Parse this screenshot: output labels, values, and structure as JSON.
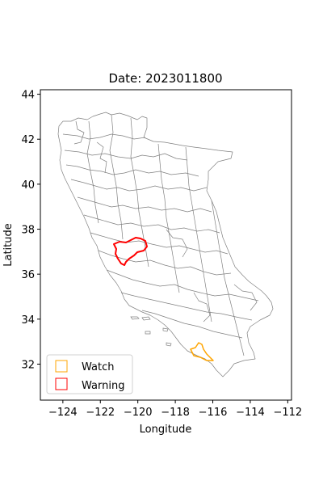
{
  "title": "Date: 2023011800",
  "map": {
    "xlabel": "Longitude",
    "ylabel": "Latitude",
    "xlim": [
      -125.2,
      -111.8
    ],
    "ylim": [
      30.4,
      44.2
    ],
    "xticks": [
      -124,
      -122,
      -120,
      -118,
      -116,
      -114,
      -112
    ],
    "yticks": [
      32,
      34,
      36,
      38,
      40,
      42,
      44
    ],
    "xtick_labels": [
      "−124",
      "−122",
      "−120",
      "−118",
      "−116",
      "−114",
      "−112"
    ],
    "ytick_labels": [
      "32",
      "34",
      "36",
      "38",
      "40",
      "42",
      "44"
    ],
    "colors": {
      "boundary": "#808080",
      "watch": "#ffa500",
      "warning": "#ff0000"
    }
  },
  "legend": {
    "placement": "lower-left",
    "items": [
      {
        "label": "Watch",
        "color": "#ffa500"
      },
      {
        "label": "Warning",
        "color": "#ff0000"
      }
    ]
  }
}
